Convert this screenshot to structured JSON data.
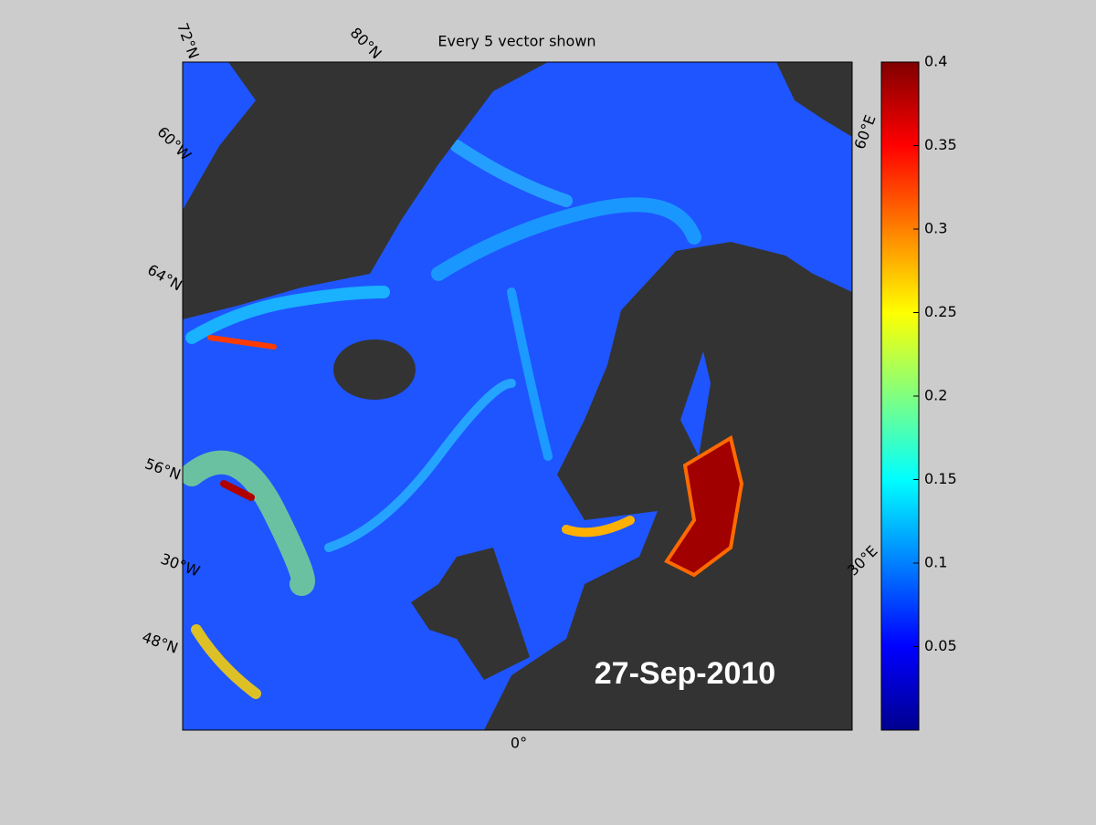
{
  "map": {
    "title": "Every 5 vector shown",
    "date_label": "27-Sep-2010",
    "graticule_labels": [
      "72°N",
      "80°N",
      "60°W",
      "64°N",
      "56°N",
      "30°W",
      "48°N",
      "0°",
      "30°E",
      "60°E"
    ],
    "colorbar": {
      "colormap": "jet",
      "lim": [
        0,
        0.4
      ],
      "ticks": [
        0.05,
        0.1,
        0.15,
        0.2,
        0.25,
        0.3,
        0.35,
        0.4
      ]
    }
  }
}
